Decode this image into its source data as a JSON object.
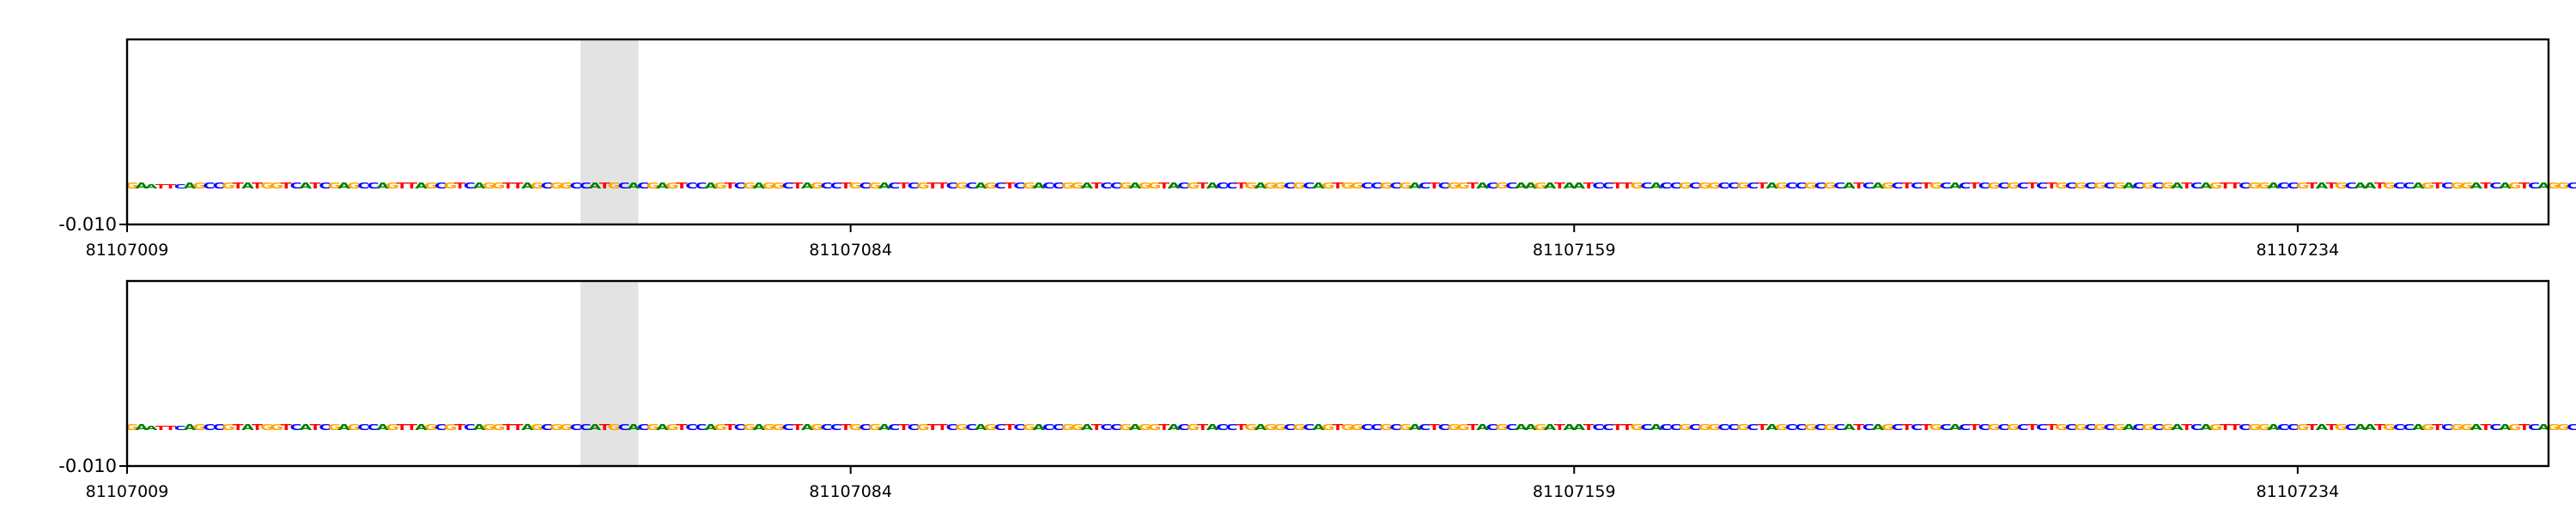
{
  "chart_data": [
    {
      "type": "sequence-logo",
      "title": "",
      "xlabel": "",
      "ylabel": "",
      "x_range": [
        81107009,
        81107259
      ],
      "x_ticks": [
        81107009,
        81107084,
        81107159,
        81107234
      ],
      "y_ticks": [
        -0.01
      ],
      "y_tick_labels": [
        "-0.010"
      ],
      "highlight_range": [
        81107056,
        81107061
      ],
      "grid": false,
      "legend": "none",
      "colors": {
        "A": "#008000",
        "C": "#0000ff",
        "G": "#ffa500",
        "T": "#ff0000",
        "highlight": "#e3e3e3"
      },
      "sequence": "GAATTCAGCCGTATGGTCATCGAGCCAGTTAGCGTCAGGTTAGCGGCCATGCACGAGTCCAGTCGAGGCTAGCCTGCGACTCGTTCGCAGCTCGACCGGATCCGAGGTACGTACCTGAGGCGCAGTGGCCGCGACTCGGTACGCAAGATAATCCTTGCACCGCGGCCGCTAGCCGCGCATCAGCTCTGCACTCGCGCTCTGCGCGCGACGCGATCAGTTCGGACCGTATGCAATGCCAGTCGGATCAGTCAGGC",
      "weights": [
        0.05,
        0.05,
        0.03,
        0.03,
        0.03,
        0.03,
        0.05,
        0.05,
        0.05,
        0.05,
        0.05,
        0.05,
        0.05,
        0.05,
        0.05,
        0.05,
        0.05,
        0.05,
        0.05,
        0.05,
        0.05,
        0.05,
        0.05,
        0.05,
        0.05,
        0.05,
        0.05,
        0.05,
        0.05,
        0.05,
        0.05,
        0.05,
        0.05,
        0.05,
        0.05,
        0.05,
        0.05,
        0.05,
        0.05,
        0.05,
        0.05,
        0.05,
        0.05,
        0.05,
        0.05,
        0.05,
        0.05,
        0.05,
        0.05,
        0.05,
        0.05,
        0.05,
        0.05,
        0.05,
        0.05,
        0.05,
        0.05,
        0.05,
        0.05,
        0.05,
        0.05,
        0.05,
        0.05,
        0.05,
        0.05,
        0.05,
        0.05,
        0.05,
        0.05,
        0.05,
        0.05,
        0.05,
        0.05,
        0.05,
        0.05,
        0.05,
        0.05,
        0.05,
        0.05,
        0.05,
        0.05,
        0.05,
        0.05,
        0.05,
        0.05,
        0.05,
        0.05,
        0.05,
        0.05,
        0.05,
        0.05,
        0.05,
        0.05,
        0.05,
        0.05,
        0.05,
        0.05,
        0.05,
        0.05,
        0.05,
        0.05,
        0.05,
        0.05,
        0.05,
        0.05,
        0.05,
        0.05,
        0.05,
        0.05,
        0.05,
        0.05,
        0.05,
        0.05,
        0.05,
        0.05,
        0.05,
        0.05,
        0.05,
        0.05,
        0.05,
        0.05,
        0.05,
        0.05,
        0.05,
        0.05,
        0.05,
        0.05,
        0.05,
        0.05,
        0.05,
        0.05,
        0.05,
        0.05,
        0.05,
        0.05,
        0.05,
        0.05,
        0.05,
        0.05,
        0.05,
        0.05,
        0.05,
        0.05,
        0.05,
        0.05,
        0.05,
        0.05,
        0.05,
        0.05,
        0.05,
        0.05,
        0.05,
        0.05,
        0.05,
        0.05,
        0.05,
        0.05,
        0.05,
        0.05,
        0.05,
        0.05,
        0.05,
        0.05,
        0.05,
        0.05,
        0.05,
        0.05,
        0.05,
        0.05,
        0.05,
        0.05,
        0.05,
        0.05,
        0.05,
        0.05,
        0.05,
        0.05,
        0.05,
        0.05,
        0.05,
        0.05,
        0.05,
        0.05,
        0.05,
        0.05,
        0.05,
        0.05,
        0.05,
        0.05,
        0.05,
        0.05,
        0.05,
        0.05,
        0.05,
        0.05,
        0.05,
        0.05,
        0.05,
        0.05,
        0.05,
        0.05,
        0.05,
        0.05,
        0.05,
        0.05,
        0.05,
        0.05,
        0.05,
        0.05,
        0.05,
        0.05,
        0.05,
        0.05,
        0.05,
        0.05,
        0.05,
        0.05,
        0.05,
        0.05,
        0.05,
        0.05,
        0.05,
        0.05,
        0.05,
        0.05,
        0.05,
        0.05,
        0.05,
        0.05,
        0.05,
        0.05,
        0.05,
        0.05,
        0.05,
        0.05,
        0.05,
        0.05,
        0.05,
        0.05,
        0.05,
        0.05,
        0.05,
        0.05,
        0.05,
        0.05,
        0.05,
        0.05
      ]
    },
    {
      "type": "sequence-logo",
      "title": "",
      "xlabel": "",
      "ylabel": "",
      "x_range": [
        81107009,
        81107259
      ],
      "x_ticks": [
        81107009,
        81107084,
        81107159,
        81107234
      ],
      "y_ticks": [
        -0.01
      ],
      "y_tick_labels": [
        "-0.010"
      ],
      "highlight_range": [
        81107056,
        81107061
      ],
      "grid": false,
      "legend": "none",
      "colors": {
        "A": "#008000",
        "C": "#0000ff",
        "G": "#ffa500",
        "T": "#ff0000",
        "highlight": "#e3e3e3"
      },
      "sequence": "GAATTCAGCCGTATGGTCATCGAGCCAGTTAGCGTCAGGTTAGCGGCCATGCACGAGTCCAGTCGAGGCTAGCCTGCGACTCGTTCGCAGCTCGACCGGATCCGAGGTACGTACCTGAGGCGCAGTGGCCGCGACTCGGTACGCAAGATAATCCTTGCACCGCGGCCGCTAGCCGCGCATCAGCTCTGCACTCGCGCTCTGCGCGCGACGCGATCAGTTCGGACCGTATGCAATGCCAGTCGGATCAGTCAGGC",
      "weights": [
        0.05,
        0.05,
        0.03,
        0.03,
        0.03,
        0.03,
        0.05,
        0.05,
        0.05,
        0.05,
        0.05,
        0.05,
        0.05,
        0.05,
        0.05,
        0.05,
        0.05,
        0.05,
        0.05,
        0.05,
        0.05,
        0.05,
        0.05,
        0.05,
        0.05,
        0.05,
        0.05,
        0.05,
        0.05,
        0.05,
        0.05,
        0.05,
        0.05,
        0.05,
        0.05,
        0.05,
        0.05,
        0.05,
        0.05,
        0.05,
        0.05,
        0.05,
        0.05,
        0.05,
        0.05,
        0.05,
        0.05,
        0.05,
        0.05,
        0.05,
        0.05,
        0.05,
        0.05,
        0.05,
        0.05,
        0.05,
        0.05,
        0.05,
        0.05,
        0.05,
        0.05,
        0.05,
        0.05,
        0.05,
        0.05,
        0.05,
        0.05,
        0.05,
        0.05,
        0.05,
        0.05,
        0.05,
        0.05,
        0.05,
        0.05,
        0.05,
        0.05,
        0.05,
        0.05,
        0.05,
        0.05,
        0.05,
        0.05,
        0.05,
        0.05,
        0.05,
        0.05,
        0.05,
        0.05,
        0.05,
        0.05,
        0.05,
        0.05,
        0.05,
        0.05,
        0.05,
        0.05,
        0.05,
        0.05,
        0.05,
        0.05,
        0.05,
        0.05,
        0.05,
        0.05,
        0.05,
        0.05,
        0.05,
        0.05,
        0.05,
        0.05,
        0.05,
        0.05,
        0.05,
        0.05,
        0.05,
        0.05,
        0.05,
        0.05,
        0.05,
        0.05,
        0.05,
        0.05,
        0.05,
        0.05,
        0.05,
        0.05,
        0.05,
        0.05,
        0.05,
        0.05,
        0.05,
        0.05,
        0.05,
        0.05,
        0.05,
        0.05,
        0.05,
        0.05,
        0.05,
        0.05,
        0.05,
        0.05,
        0.05,
        0.05,
        0.05,
        0.05,
        0.05,
        0.05,
        0.05,
        0.05,
        0.05,
        0.05,
        0.05,
        0.05,
        0.05,
        0.05,
        0.05,
        0.05,
        0.05,
        0.05,
        0.05,
        0.05,
        0.05,
        0.05,
        0.05,
        0.05,
        0.05,
        0.05,
        0.05,
        0.05,
        0.05,
        0.05,
        0.05,
        0.05,
        0.05,
        0.05,
        0.05,
        0.05,
        0.05,
        0.05,
        0.05,
        0.05,
        0.05,
        0.05,
        0.05,
        0.05,
        0.05,
        0.05,
        0.05,
        0.05,
        0.05,
        0.05,
        0.05,
        0.05,
        0.05,
        0.05,
        0.05,
        0.05,
        0.05,
        0.05,
        0.05,
        0.05,
        0.05,
        0.05,
        0.05,
        0.05,
        0.05,
        0.05,
        0.05,
        0.05,
        0.05,
        0.05,
        0.05,
        0.05,
        0.05,
        0.05,
        0.05,
        0.05,
        0.05,
        0.05,
        0.05,
        0.05,
        0.05,
        0.05,
        0.05,
        0.05,
        0.05,
        0.05,
        0.05,
        0.05,
        0.05,
        0.05,
        0.05,
        0.05,
        0.05,
        0.05,
        0.05,
        0.05,
        0.05,
        0.05,
        0.05,
        0.05,
        0.05,
        0.05,
        0.05,
        0.05
      ]
    }
  ]
}
